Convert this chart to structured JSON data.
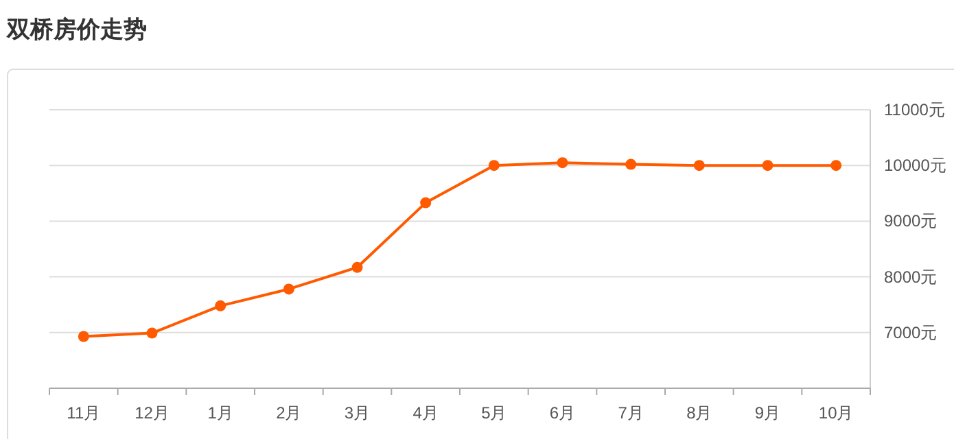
{
  "chart_data": {
    "type": "line",
    "title": "双桥房价走势",
    "categories": [
      "11月",
      "12月",
      "1月",
      "2月",
      "3月",
      "4月",
      "5月",
      "6月",
      "7月",
      "8月",
      "9月",
      "10月"
    ],
    "series": [
      {
        "color": "#ff5a00",
        "values": [
          6930,
          6990,
          7480,
          7780,
          8170,
          9330,
          10000,
          10050,
          10020,
          10000,
          10000,
          10000
        ]
      }
    ],
    "ylim": [
      6000,
      11000
    ],
    "yticks": [
      {
        "value": 7000,
        "label": "7000元"
      },
      {
        "value": 8000,
        "label": "8000元"
      },
      {
        "value": 9000,
        "label": "9000元"
      },
      {
        "value": 10000,
        "label": "10000元"
      },
      {
        "value": 11000,
        "label": "11000元"
      }
    ],
    "grid": "y",
    "marker": "circle",
    "line_style": "solid"
  }
}
